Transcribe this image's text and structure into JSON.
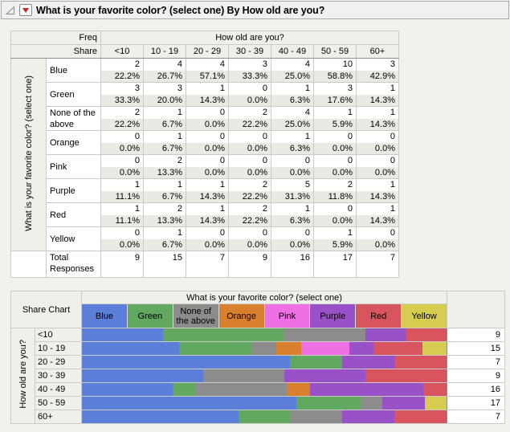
{
  "title_bar": {
    "title": "What is your favorite color? (select one) By How old are you?",
    "icons": {
      "disclosure": "open-outline-triangle-icon",
      "menu": "red-triangle-down-icon"
    }
  },
  "palette": {
    "blue": "#5B7ED9",
    "green": "#61A861",
    "none": "#8C8C8C",
    "orange": "#D8802E",
    "pink": "#EE70E4",
    "purple": "#9951C8",
    "red": "#D8545E",
    "yellow": "#D6CC4F"
  },
  "ui_colors": {
    "page_bg": "#F1F1ED",
    "header_cell_bg": "#F0F0EB",
    "share_cell_bg": "#EAEAE5",
    "grid_light": "#CBCBC6",
    "grid_dark": "#8F8F8D",
    "menu_red": "#C62323"
  },
  "freq_table": {
    "corner_row1": "Freq",
    "corner_row2": "Share",
    "col_group_label": "How old are you?",
    "row_group_label": "What is your favorite color? (select one)",
    "age_columns": [
      "<10",
      "10 - 19",
      "20 - 29",
      "30 - 39",
      "40 - 49",
      "50 - 59",
      "60+"
    ],
    "rows": [
      {
        "label": "Blue",
        "freq": [
          2,
          4,
          4,
          3,
          4,
          10,
          3
        ],
        "share": [
          "22.2%",
          "26.7%",
          "57.1%",
          "33.3%",
          "25.0%",
          "58.8%",
          "42.9%"
        ]
      },
      {
        "label": "Green",
        "freq": [
          3,
          3,
          1,
          0,
          1,
          3,
          1
        ],
        "share": [
          "33.3%",
          "20.0%",
          "14.3%",
          "0.0%",
          "6.3%",
          "17.6%",
          "14.3%"
        ]
      },
      {
        "label": "None of the above",
        "freq": [
          2,
          1,
          0,
          2,
          4,
          1,
          1
        ],
        "share": [
          "22.2%",
          "6.7%",
          "0.0%",
          "22.2%",
          "25.0%",
          "5.9%",
          "14.3%"
        ]
      },
      {
        "label": "Orange",
        "freq": [
          0,
          1,
          0,
          0,
          1,
          0,
          0
        ],
        "share": [
          "0.0%",
          "6.7%",
          "0.0%",
          "0.0%",
          "6.3%",
          "0.0%",
          "0.0%"
        ]
      },
      {
        "label": "Pink",
        "freq": [
          0,
          2,
          0,
          0,
          0,
          0,
          0
        ],
        "share": [
          "0.0%",
          "13.3%",
          "0.0%",
          "0.0%",
          "0.0%",
          "0.0%",
          "0.0%"
        ]
      },
      {
        "label": "Purple",
        "freq": [
          1,
          1,
          1,
          2,
          5,
          2,
          1
        ],
        "share": [
          "11.1%",
          "6.7%",
          "14.3%",
          "22.2%",
          "31.3%",
          "11.8%",
          "14.3%"
        ]
      },
      {
        "label": "Red",
        "freq": [
          1,
          2,
          1,
          2,
          1,
          0,
          1
        ],
        "share": [
          "11.1%",
          "13.3%",
          "14.3%",
          "22.2%",
          "6.3%",
          "0.0%",
          "14.3%"
        ]
      },
      {
        "label": "Yellow",
        "freq": [
          0,
          1,
          0,
          0,
          0,
          1,
          0
        ],
        "share": [
          "0.0%",
          "6.7%",
          "0.0%",
          "0.0%",
          "0.0%",
          "5.9%",
          "0.0%"
        ]
      }
    ],
    "total_label": "Total Responses",
    "totals": [
      9,
      15,
      7,
      9,
      16,
      17,
      7
    ]
  },
  "share_chart": {
    "label": "Share Chart",
    "group_label": "What is your favorite color? (select one)",
    "axis_label": "How old are you?",
    "legend": [
      {
        "key": "blue",
        "label": "Blue"
      },
      {
        "key": "green",
        "label": "Green"
      },
      {
        "key": "none",
        "label": "None of the above"
      },
      {
        "key": "orange",
        "label": "Orange"
      },
      {
        "key": "pink",
        "label": "Pink"
      },
      {
        "key": "purple",
        "label": "Purple"
      },
      {
        "key": "red",
        "label": "Red"
      },
      {
        "key": "yellow",
        "label": "Yellow"
      }
    ],
    "rows": [
      {
        "label": "<10",
        "total": 9,
        "segments": [
          {
            "key": "blue",
            "pct": 22.2
          },
          {
            "key": "green",
            "pct": 33.3
          },
          {
            "key": "none",
            "pct": 22.2
          },
          {
            "key": "purple",
            "pct": 11.1
          },
          {
            "key": "red",
            "pct": 11.1
          }
        ]
      },
      {
        "label": "10 - 19",
        "total": 15,
        "segments": [
          {
            "key": "blue",
            "pct": 26.7
          },
          {
            "key": "green",
            "pct": 20.0
          },
          {
            "key": "none",
            "pct": 6.7
          },
          {
            "key": "orange",
            "pct": 6.7
          },
          {
            "key": "pink",
            "pct": 13.3
          },
          {
            "key": "purple",
            "pct": 6.7
          },
          {
            "key": "red",
            "pct": 13.3
          },
          {
            "key": "yellow",
            "pct": 6.7
          }
        ]
      },
      {
        "label": "20 - 29",
        "total": 7,
        "segments": [
          {
            "key": "blue",
            "pct": 57.1
          },
          {
            "key": "green",
            "pct": 14.3
          },
          {
            "key": "purple",
            "pct": 14.3
          },
          {
            "key": "red",
            "pct": 14.3
          }
        ]
      },
      {
        "label": "30 - 39",
        "total": 9,
        "segments": [
          {
            "key": "blue",
            "pct": 33.3
          },
          {
            "key": "none",
            "pct": 22.2
          },
          {
            "key": "purple",
            "pct": 22.2
          },
          {
            "key": "red",
            "pct": 22.2
          }
        ]
      },
      {
        "label": "40 - 49",
        "total": 16,
        "segments": [
          {
            "key": "blue",
            "pct": 25.0
          },
          {
            "key": "green",
            "pct": 6.3
          },
          {
            "key": "none",
            "pct": 25.0
          },
          {
            "key": "orange",
            "pct": 6.3
          },
          {
            "key": "purple",
            "pct": 31.3
          },
          {
            "key": "red",
            "pct": 6.3
          }
        ]
      },
      {
        "label": "50 - 59",
        "total": 17,
        "segments": [
          {
            "key": "blue",
            "pct": 58.8
          },
          {
            "key": "green",
            "pct": 17.6
          },
          {
            "key": "none",
            "pct": 5.9
          },
          {
            "key": "purple",
            "pct": 11.8
          },
          {
            "key": "yellow",
            "pct": 5.9
          }
        ]
      },
      {
        "label": "60+",
        "total": 7,
        "segments": [
          {
            "key": "blue",
            "pct": 42.9
          },
          {
            "key": "green",
            "pct": 14.3
          },
          {
            "key": "none",
            "pct": 14.3
          },
          {
            "key": "purple",
            "pct": 14.3
          },
          {
            "key": "red",
            "pct": 14.3
          }
        ]
      }
    ]
  },
  "chart_data": {
    "type": "bar",
    "stacked": true,
    "orientation": "horizontal",
    "title": "Share Chart",
    "categories": [
      "<10",
      "10 - 19",
      "20 - 29",
      "30 - 39",
      "40 - 49",
      "50 - 59",
      "60+"
    ],
    "series": [
      {
        "name": "Blue",
        "values": [
          22.2,
          26.7,
          57.1,
          33.3,
          25.0,
          58.8,
          42.9
        ]
      },
      {
        "name": "Green",
        "values": [
          33.3,
          20.0,
          14.3,
          0.0,
          6.3,
          17.6,
          14.3
        ]
      },
      {
        "name": "None of the above",
        "values": [
          22.2,
          6.7,
          0.0,
          22.2,
          25.0,
          5.9,
          14.3
        ]
      },
      {
        "name": "Orange",
        "values": [
          0.0,
          6.7,
          0.0,
          0.0,
          6.3,
          0.0,
          0.0
        ]
      },
      {
        "name": "Pink",
        "values": [
          0.0,
          13.3,
          0.0,
          0.0,
          0.0,
          0.0,
          0.0
        ]
      },
      {
        "name": "Purple",
        "values": [
          11.1,
          6.7,
          14.3,
          22.2,
          31.3,
          11.8,
          14.3
        ]
      },
      {
        "name": "Red",
        "values": [
          11.1,
          13.3,
          14.3,
          22.2,
          6.3,
          0.0,
          14.3
        ]
      },
      {
        "name": "Yellow",
        "values": [
          0.0,
          6.7,
          0.0,
          0.0,
          0.0,
          5.9,
          0.0
        ]
      }
    ],
    "row_totals": [
      9,
      15,
      7,
      9,
      16,
      17,
      7
    ],
    "units": "percent share of row",
    "xlabel": "What is your favorite color? (select one)",
    "ylabel": "How old are you?",
    "xlim": [
      0,
      100
    ],
    "legend_position": "top"
  }
}
